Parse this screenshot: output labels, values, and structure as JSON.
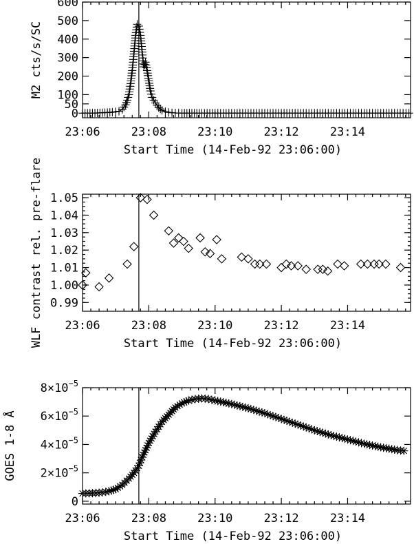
{
  "chart_data": [
    {
      "type": "scatter",
      "ylabel": "M2 cts/s/SC",
      "xlabel": "Start Time (14-Feb-92 23:06:00)",
      "xlim": [
        0,
        9.9
      ],
      "ylim": [
        -25,
        600
      ],
      "x_ticks": [
        0,
        2,
        4,
        6,
        8
      ],
      "x_tick_labels": [
        "23:06",
        "23:08",
        "23:10",
        "23:12",
        "23:14"
      ],
      "y_ticks": [
        0,
        50,
        100,
        200,
        300,
        400,
        500,
        600
      ],
      "y_tick_labels": [
        "0",
        "50",
        "100",
        "200",
        "300",
        "400",
        "500",
        "600"
      ],
      "marker": "plus",
      "connect_line": true,
      "marker_line": 1.7,
      "series": [
        {
          "x": [
            0.0,
            0.3,
            0.6,
            0.9,
            1.1,
            1.2,
            1.3,
            1.35,
            1.4,
            1.45,
            1.5,
            1.55,
            1.6,
            1.65,
            1.7,
            1.75,
            1.8,
            1.85,
            1.9,
            1.95,
            2.0,
            2.05,
            2.1,
            2.2,
            2.3,
            2.4,
            2.5,
            2.6,
            2.7,
            2.8,
            3.0,
            3.3,
            3.6,
            4.0,
            4.5,
            5.0,
            5.5,
            6.0,
            6.5,
            7.0,
            7.5,
            8.0,
            8.5,
            9.0,
            9.5,
            9.85
          ],
          "y": [
            0,
            0,
            2,
            5,
            10,
            20,
            45,
            70,
            100,
            160,
            230,
            320,
            420,
            480,
            470,
            420,
            330,
            250,
            275,
            230,
            175,
            120,
            85,
            55,
            30,
            15,
            8,
            4,
            2,
            1,
            0,
            0,
            0,
            0,
            0,
            0,
            0,
            0,
            0,
            0,
            0,
            0,
            0,
            0,
            0,
            0
          ]
        }
      ]
    },
    {
      "type": "scatter",
      "ylabel": "WLF contrast rel. pre-flare",
      "xlabel": "Start Time (14-Feb-92 23:06:00)",
      "xlim": [
        0,
        9.9
      ],
      "ylim": [
        0.985,
        1.052
      ],
      "x_ticks": [
        0,
        2,
        4,
        6,
        8
      ],
      "x_tick_labels": [
        "23:06",
        "23:08",
        "23:10",
        "23:12",
        "23:14"
      ],
      "y_ticks": [
        0.99,
        1.0,
        1.01,
        1.02,
        1.03,
        1.04,
        1.05
      ],
      "y_tick_labels": [
        "0.99",
        "1.00",
        "1.01",
        "1.02",
        "1.03",
        "1.04",
        "1.05"
      ],
      "marker": "diamond",
      "connect_line": false,
      "marker_line": 1.7,
      "series": [
        {
          "x": [
            0.0,
            0.1,
            0.5,
            0.8,
            1.35,
            1.55,
            1.75,
            1.95,
            2.15,
            2.6,
            2.75,
            2.9,
            3.05,
            3.2,
            3.55,
            3.7,
            3.85,
            4.05,
            4.2,
            4.8,
            5.0,
            5.2,
            5.35,
            5.55,
            6.0,
            6.15,
            6.3,
            6.5,
            6.75,
            7.1,
            7.25,
            7.4,
            7.7,
            7.9,
            8.4,
            8.6,
            8.8,
            8.95,
            9.15,
            9.6
          ],
          "y": [
            1.0,
            1.007,
            0.999,
            1.004,
            1.012,
            1.022,
            1.05,
            1.049,
            1.04,
            1.031,
            1.024,
            1.027,
            1.025,
            1.021,
            1.027,
            1.019,
            1.018,
            1.026,
            1.015,
            1.016,
            1.015,
            1.012,
            1.012,
            1.012,
            1.01,
            1.012,
            1.011,
            1.011,
            1.009,
            1.009,
            1.009,
            1.008,
            1.012,
            1.011,
            1.012,
            1.012,
            1.012,
            1.012,
            1.012,
            1.01
          ]
        }
      ]
    },
    {
      "type": "scatter",
      "ylabel": "GOES 1-8 Å",
      "xlabel": "Start Time (14-Feb-92 23:06:00)",
      "xlim": [
        0,
        9.9
      ],
      "ylim": [
        -2e-06,
        8e-05
      ],
      "x_ticks": [
        0,
        2,
        4,
        6,
        8
      ],
      "x_tick_labels": [
        "23:06",
        "23:08",
        "23:10",
        "23:12",
        "23:14"
      ],
      "y_ticks": [
        0,
        2e-05,
        4e-05,
        6e-05,
        8e-05
      ],
      "y_tick_mantissas": [
        "0",
        "2",
        "4",
        "6",
        "8"
      ],
      "y_tick_sci_base": "×10",
      "y_tick_sci_exp": "−5",
      "marker": "asterisk",
      "connect_line": true,
      "marker_line": 1.7,
      "series": [
        {
          "x": [
            0.0,
            0.2,
            0.4,
            0.6,
            0.8,
            1.0,
            1.2,
            1.4,
            1.55,
            1.7,
            1.8,
            1.9,
            2.0,
            2.2,
            2.4,
            2.6,
            2.8,
            3.0,
            3.2,
            3.4,
            3.6,
            3.8,
            4.0,
            4.5,
            5.0,
            5.5,
            6.0,
            6.5,
            7.0,
            7.5,
            8.0,
            8.5,
            9.0,
            9.5,
            9.7
          ],
          "y": [
            5.5e-06,
            5.6e-06,
            5.8e-06,
            6.2e-06,
            7e-06,
            8.5e-06,
            1.15e-05,
            1.6e-05,
            2e-05,
            2.5e-05,
            3.1e-05,
            3.6e-05,
            4.1e-05,
            4.9e-05,
            5.6e-05,
            6.1e-05,
            6.6e-05,
            6.9e-05,
            7.1e-05,
            7.2e-05,
            7.25e-05,
            7.2e-05,
            7.1e-05,
            6.85e-05,
            6.55e-05,
            6.2e-05,
            5.8e-05,
            5.4e-05,
            5e-05,
            4.65e-05,
            4.35e-05,
            4.05e-05,
            3.8e-05,
            3.6e-05,
            3.55e-05
          ]
        }
      ]
    }
  ]
}
